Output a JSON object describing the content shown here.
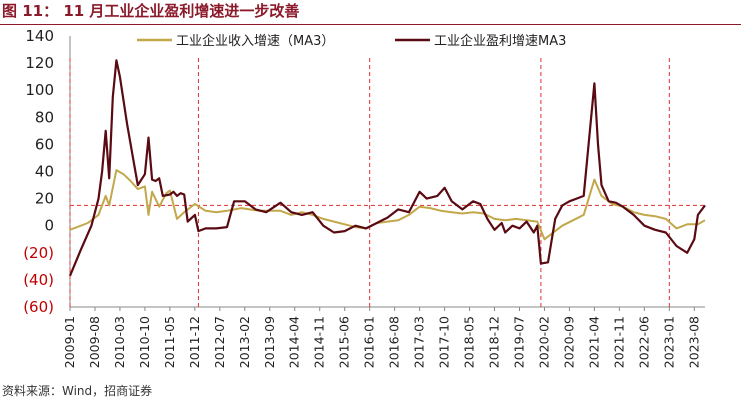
{
  "title": "图 11： 11 月工业企业盈利增速进一步改善",
  "source": "资料来源：Wind，招商证券",
  "colors": {
    "title": "#8B1A2B",
    "revenue": "#C2A84A",
    "profit": "#5A0A12",
    "negative_tick": "#C00000",
    "ref_line": "#E03030",
    "axis": "#888888"
  },
  "chart_data": {
    "type": "line",
    "title": "",
    "xlabel": "",
    "ylabel": "",
    "ylim": [
      -60,
      140
    ],
    "y_ticks": [
      "140",
      "120",
      "100",
      "80",
      "60",
      "40",
      "20",
      "0",
      "(20)",
      "(40)",
      "(60)"
    ],
    "x_ticks": [
      "2009-01",
      "2009-08",
      "2010-03",
      "2010-10",
      "2011-05",
      "2011-12",
      "2012-07",
      "2013-02",
      "2013-09",
      "2014-04",
      "2014-11",
      "2015-06",
      "2016-01",
      "2016-08",
      "2017-03",
      "2017-10",
      "2018-05",
      "2018-12",
      "2019-07",
      "2020-02",
      "2020-09",
      "2021-04",
      "2021-11",
      "2022-06",
      "2023-01",
      "2023-08"
    ],
    "x_range": [
      "2009-01",
      "2023-11"
    ],
    "legend_position": "top",
    "grid": false,
    "vertical_markers": [
      "2009-01",
      "2012-01",
      "2016-01",
      "2020-01",
      "2023-01"
    ],
    "horizontal_marker": {
      "y": 15,
      "from": "2009-01",
      "to": "2023-11"
    },
    "series": [
      {
        "name": "工业企业收入增速（MA3）",
        "color": "#C2A84A",
        "points": [
          [
            "2009-01",
            -3
          ],
          [
            "2009-06",
            2
          ],
          [
            "2009-09",
            8
          ],
          [
            "2009-11",
            22
          ],
          [
            "2009-12",
            15
          ],
          [
            "2010-02",
            41
          ],
          [
            "2010-04",
            38
          ],
          [
            "2010-06",
            33
          ],
          [
            "2010-08",
            27
          ],
          [
            "2010-10",
            29
          ],
          [
            "2010-11",
            8
          ],
          [
            "2010-12",
            25
          ],
          [
            "2011-02",
            14
          ],
          [
            "2011-04",
            24
          ],
          [
            "2011-05",
            26
          ],
          [
            "2011-07",
            5
          ],
          [
            "2011-09",
            10
          ],
          [
            "2011-12",
            16
          ],
          [
            "2012-03",
            11
          ],
          [
            "2012-06",
            10
          ],
          [
            "2012-09",
            11
          ],
          [
            "2013-01",
            13
          ],
          [
            "2013-06",
            11
          ],
          [
            "2013-12",
            11
          ],
          [
            "2014-03",
            8
          ],
          [
            "2014-06",
            10
          ],
          [
            "2014-09",
            8
          ],
          [
            "2014-12",
            5
          ],
          [
            "2015-03",
            3
          ],
          [
            "2015-06",
            1
          ],
          [
            "2015-09",
            -1
          ],
          [
            "2015-12",
            -2
          ],
          [
            "2016-03",
            2
          ],
          [
            "2016-06",
            3
          ],
          [
            "2016-09",
            4
          ],
          [
            "2016-12",
            8
          ],
          [
            "2017-03",
            14
          ],
          [
            "2017-06",
            13
          ],
          [
            "2017-09",
            11
          ],
          [
            "2017-12",
            10
          ],
          [
            "2018-03",
            9
          ],
          [
            "2018-06",
            10
          ],
          [
            "2018-09",
            9
          ],
          [
            "2018-12",
            5
          ],
          [
            "2019-03",
            4
          ],
          [
            "2019-06",
            5
          ],
          [
            "2019-09",
            4
          ],
          [
            "2019-12",
            3
          ],
          [
            "2020-02",
            -10
          ],
          [
            "2020-04",
            -6
          ],
          [
            "2020-07",
            0
          ],
          [
            "2020-10",
            4
          ],
          [
            "2021-01",
            8
          ],
          [
            "2021-04",
            34
          ],
          [
            "2021-06",
            22
          ],
          [
            "2021-09",
            16
          ],
          [
            "2021-12",
            14
          ],
          [
            "2022-03",
            10
          ],
          [
            "2022-06",
            8
          ],
          [
            "2022-09",
            7
          ],
          [
            "2022-12",
            5
          ],
          [
            "2023-03",
            -2
          ],
          [
            "2023-06",
            1
          ],
          [
            "2023-09",
            1
          ],
          [
            "2023-11",
            4
          ]
        ]
      },
      {
        "name": "工业企业盈利增速MA3",
        "color": "#5A0A12",
        "points": [
          [
            "2009-01",
            -37
          ],
          [
            "2009-04",
            -18
          ],
          [
            "2009-07",
            0
          ],
          [
            "2009-09",
            20
          ],
          [
            "2009-10",
            40
          ],
          [
            "2009-11",
            70
          ],
          [
            "2009-12",
            35
          ],
          [
            "2010-01",
            95
          ],
          [
            "2010-02",
            122
          ],
          [
            "2010-03",
            110
          ],
          [
            "2010-05",
            75
          ],
          [
            "2010-07",
            45
          ],
          [
            "2010-08",
            30
          ],
          [
            "2010-10",
            38
          ],
          [
            "2010-11",
            65
          ],
          [
            "2010-12",
            34
          ],
          [
            "2011-01",
            33
          ],
          [
            "2011-02",
            35
          ],
          [
            "2011-03",
            22
          ],
          [
            "2011-05",
            23
          ],
          [
            "2011-06",
            25
          ],
          [
            "2011-07",
            22
          ],
          [
            "2011-08",
            24
          ],
          [
            "2011-09",
            23
          ],
          [
            "2011-10",
            3
          ],
          [
            "2011-12",
            8
          ],
          [
            "2012-01",
            -4
          ],
          [
            "2012-03",
            -2
          ],
          [
            "2012-06",
            -2
          ],
          [
            "2012-09",
            -1
          ],
          [
            "2012-11",
            18
          ],
          [
            "2013-02",
            18
          ],
          [
            "2013-05",
            12
          ],
          [
            "2013-08",
            10
          ],
          [
            "2013-12",
            17
          ],
          [
            "2014-03",
            10
          ],
          [
            "2014-06",
            8
          ],
          [
            "2014-09",
            10
          ],
          [
            "2014-12",
            0
          ],
          [
            "2015-03",
            -5
          ],
          [
            "2015-06",
            -4
          ],
          [
            "2015-09",
            0
          ],
          [
            "2015-12",
            -2
          ],
          [
            "2016-03",
            2
          ],
          [
            "2016-06",
            6
          ],
          [
            "2016-09",
            12
          ],
          [
            "2016-12",
            10
          ],
          [
            "2017-03",
            25
          ],
          [
            "2017-05",
            20
          ],
          [
            "2017-08",
            22
          ],
          [
            "2017-10",
            28
          ],
          [
            "2017-12",
            18
          ],
          [
            "2018-03",
            12
          ],
          [
            "2018-06",
            18
          ],
          [
            "2018-08",
            16
          ],
          [
            "2018-10",
            5
          ],
          [
            "2018-12",
            -3
          ],
          [
            "2019-02",
            2
          ],
          [
            "2019-03",
            -5
          ],
          [
            "2019-05",
            0
          ],
          [
            "2019-07",
            -2
          ],
          [
            "2019-09",
            3
          ],
          [
            "2019-11",
            -5
          ],
          [
            "2019-12",
            0
          ],
          [
            "2020-01",
            -28
          ],
          [
            "2020-03",
            -27
          ],
          [
            "2020-05",
            5
          ],
          [
            "2020-07",
            15
          ],
          [
            "2020-09",
            18
          ],
          [
            "2020-11",
            20
          ],
          [
            "2021-01",
            22
          ],
          [
            "2021-02",
            50
          ],
          [
            "2021-04",
            105
          ],
          [
            "2021-05",
            60
          ],
          [
            "2021-06",
            30
          ],
          [
            "2021-08",
            18
          ],
          [
            "2021-10",
            17
          ],
          [
            "2021-12",
            14
          ],
          [
            "2022-03",
            8
          ],
          [
            "2022-06",
            0
          ],
          [
            "2022-09",
            -3
          ],
          [
            "2022-12",
            -5
          ],
          [
            "2023-03",
            -15
          ],
          [
            "2023-06",
            -20
          ],
          [
            "2023-08",
            -10
          ],
          [
            "2023-09",
            8
          ],
          [
            "2023-11",
            15
          ]
        ]
      }
    ]
  }
}
